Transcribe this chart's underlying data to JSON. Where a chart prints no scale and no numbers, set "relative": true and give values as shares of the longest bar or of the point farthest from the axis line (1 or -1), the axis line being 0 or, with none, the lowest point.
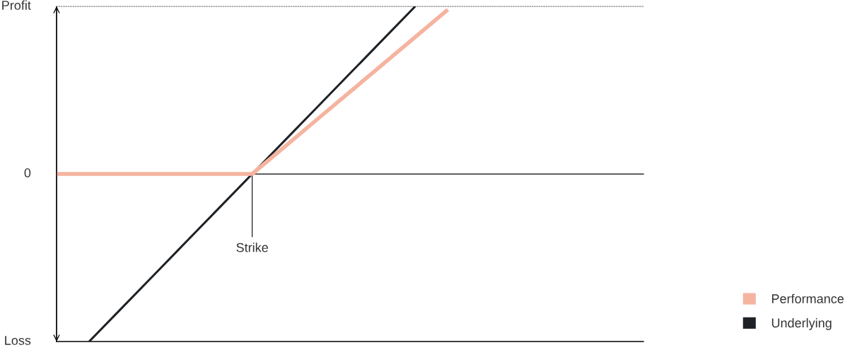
{
  "chart_data": {
    "type": "line",
    "relative": true,
    "categories": [
      null,
      null,
      null,
      null,
      null,
      null,
      null,
      null,
      null,
      null,
      null,
      null,
      null,
      null,
      null,
      null,
      null,
      null,
      null
    ],
    "series": [
      {
        "name": "Performance",
        "color": "#f5b4a0",
        "values": [
          0,
          0,
          0,
          0,
          0,
          0,
          0,
          0.163,
          0.327,
          0.49,
          0.653,
          0.817,
          0.98,
          null,
          null,
          null,
          null,
          null,
          null
        ]
      },
      {
        "name": "Underlying",
        "color": "#1e2226",
        "values": [
          null,
          -1,
          -0.8,
          -0.6,
          -0.4,
          -0.2,
          0,
          0.2,
          0.4,
          0.6,
          0.8,
          1,
          null,
          null,
          null,
          null,
          null,
          null,
          null
        ]
      }
    ],
    "annotations": [
      "Profit",
      "0",
      "Loss",
      {
        "text": "Strike",
        "y": 0
      }
    ],
    "legend": "bottom right",
    "marker": "none",
    "line_style": "solid"
  }
}
